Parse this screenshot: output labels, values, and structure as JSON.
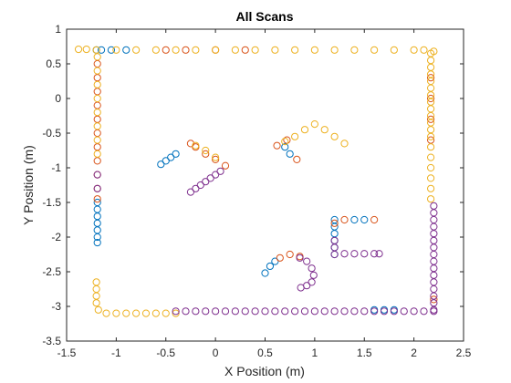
{
  "chart_data": {
    "type": "scatter",
    "title": "All Scans",
    "xlabel": "X Position (m)",
    "ylabel": "Y Position (m)",
    "xlim": [
      -1.5,
      2.5
    ],
    "ylim": [
      -3.5,
      1
    ],
    "xticks": [
      "-1.5",
      "-1",
      "-0.5",
      "0",
      "0.5",
      "1",
      "1.5",
      "2",
      "2.5"
    ],
    "yticks": [
      "1",
      "0.5",
      "0",
      "-0.5",
      "-1",
      "-1.5",
      "-2",
      "-2.5",
      "-3",
      "-3.5"
    ],
    "xtick_values": [
      -1.5,
      -1,
      -0.5,
      0,
      0.5,
      1,
      1.5,
      2,
      2.5
    ],
    "ytick_values": [
      1,
      0.5,
      0,
      -0.5,
      -1,
      -1.5,
      -2,
      -2.5,
      -3,
      -3.5
    ],
    "grid": false,
    "marker": "open-circle",
    "series": [
      {
        "color": "#0072BD",
        "points": [
          [
            -1.2,
            0.7
          ],
          [
            -1.15,
            0.7
          ],
          [
            -1.05,
            0.7
          ],
          [
            -0.9,
            0.7
          ],
          [
            -1.19,
            -1.5
          ],
          [
            -1.19,
            -1.6
          ],
          [
            -1.19,
            -1.7
          ],
          [
            -1.19,
            -1.8
          ],
          [
            -1.19,
            -1.9
          ],
          [
            -1.19,
            -2.0
          ],
          [
            -1.19,
            -2.08
          ],
          [
            -0.55,
            -0.95
          ],
          [
            -0.5,
            -0.9
          ],
          [
            -0.45,
            -0.85
          ],
          [
            -0.4,
            -0.8
          ],
          [
            0.75,
            -0.8
          ],
          [
            0.7,
            -0.7
          ],
          [
            1.2,
            -1.75
          ],
          [
            1.2,
            -1.85
          ],
          [
            1.2,
            -1.95
          ],
          [
            1.2,
            -2.05
          ],
          [
            1.2,
            -2.15
          ],
          [
            1.2,
            -2.25
          ],
          [
            1.4,
            -1.75
          ],
          [
            1.5,
            -1.75
          ],
          [
            0.5,
            -2.52
          ],
          [
            0.55,
            -2.42
          ],
          [
            0.6,
            -2.35
          ],
          [
            1.6,
            -3.05
          ],
          [
            1.7,
            -3.05
          ],
          [
            1.8,
            -3.05
          ]
        ]
      },
      {
        "color": "#D95319",
        "points": [
          [
            -1.19,
            0.5
          ],
          [
            -1.19,
            0.3
          ],
          [
            -1.19,
            0.1
          ],
          [
            -1.19,
            -0.1
          ],
          [
            -1.19,
            -0.3
          ],
          [
            -1.19,
            -0.5
          ],
          [
            -1.19,
            -0.7
          ],
          [
            -1.19,
            -0.9
          ],
          [
            -1.19,
            -1.1
          ],
          [
            -1.19,
            -1.3
          ],
          [
            -1.19,
            -1.45
          ],
          [
            -0.5,
            0.7
          ],
          [
            -0.3,
            0.7
          ],
          [
            0.0,
            0.7
          ],
          [
            0.3,
            0.7
          ],
          [
            -0.25,
            -0.65
          ],
          [
            -0.2,
            -0.7
          ],
          [
            -0.1,
            -0.8
          ],
          [
            0.0,
            -0.88
          ],
          [
            0.1,
            -0.97
          ],
          [
            0.62,
            -0.68
          ],
          [
            0.72,
            -0.6
          ],
          [
            0.82,
            -0.88
          ],
          [
            1.2,
            -1.8
          ],
          [
            1.3,
            -1.75
          ],
          [
            1.6,
            -1.75
          ],
          [
            0.65,
            -2.3
          ],
          [
            0.75,
            -2.25
          ],
          [
            0.85,
            -2.28
          ],
          [
            2.17,
            0.3
          ],
          [
            2.17,
            0.0
          ],
          [
            2.17,
            -0.3
          ],
          [
            2.17,
            -0.6
          ],
          [
            2.2,
            -2.9
          ]
        ]
      },
      {
        "color": "#EDB120",
        "points": [
          [
            -1.38,
            0.71
          ],
          [
            -1.3,
            0.71
          ],
          [
            -1.2,
            0.7
          ],
          [
            -1.0,
            0.7
          ],
          [
            -0.8,
            0.7
          ],
          [
            -0.6,
            0.7
          ],
          [
            -0.4,
            0.7
          ],
          [
            -0.2,
            0.7
          ],
          [
            0.0,
            0.7
          ],
          [
            0.2,
            0.7
          ],
          [
            0.4,
            0.7
          ],
          [
            0.6,
            0.7
          ],
          [
            0.8,
            0.7
          ],
          [
            1.0,
            0.7
          ],
          [
            1.2,
            0.7
          ],
          [
            1.4,
            0.7
          ],
          [
            1.6,
            0.7
          ],
          [
            1.8,
            0.7
          ],
          [
            2.0,
            0.7
          ],
          [
            2.1,
            0.7
          ],
          [
            2.2,
            0.68
          ],
          [
            -1.19,
            0.6
          ],
          [
            -1.19,
            0.4
          ],
          [
            -1.19,
            0.2
          ],
          [
            -1.19,
            0.0
          ],
          [
            -1.19,
            -0.2
          ],
          [
            -1.19,
            -0.4
          ],
          [
            -1.19,
            -0.6
          ],
          [
            -1.19,
            -0.8
          ],
          [
            -1.2,
            -2.65
          ],
          [
            -1.2,
            -2.75
          ],
          [
            -1.2,
            -2.85
          ],
          [
            -1.2,
            -2.95
          ],
          [
            -1.18,
            -3.05
          ],
          [
            -1.1,
            -3.1
          ],
          [
            -1.0,
            -3.1
          ],
          [
            -0.9,
            -3.1
          ],
          [
            -0.8,
            -3.1
          ],
          [
            -0.7,
            -3.1
          ],
          [
            -0.6,
            -3.1
          ],
          [
            -0.5,
            -3.1
          ],
          [
            -0.4,
            -3.1
          ],
          [
            -0.2,
            -0.68
          ],
          [
            -0.1,
            -0.75
          ],
          [
            0.0,
            -0.85
          ],
          [
            0.7,
            -0.62
          ],
          [
            0.8,
            -0.55
          ],
          [
            0.9,
            -0.45
          ],
          [
            1.0,
            -0.37
          ],
          [
            1.1,
            -0.45
          ],
          [
            1.2,
            -0.55
          ],
          [
            1.3,
            -0.65
          ],
          [
            2.17,
            0.65
          ],
          [
            2.17,
            0.55
          ],
          [
            2.17,
            0.45
          ],
          [
            2.17,
            0.35
          ],
          [
            2.17,
            0.25
          ],
          [
            2.17,
            0.15
          ],
          [
            2.17,
            0.05
          ],
          [
            2.17,
            -0.05
          ],
          [
            2.17,
            -0.15
          ],
          [
            2.17,
            -0.25
          ],
          [
            2.17,
            -0.35
          ],
          [
            2.17,
            -0.45
          ],
          [
            2.17,
            -0.55
          ],
          [
            2.17,
            -0.7
          ],
          [
            2.17,
            -0.85
          ],
          [
            2.17,
            -1.0
          ],
          [
            2.17,
            -1.15
          ],
          [
            2.17,
            -1.3
          ],
          [
            2.17,
            -1.45
          ]
        ]
      },
      {
        "color": "#7E2F8E",
        "points": [
          [
            -0.25,
            -1.35
          ],
          [
            -0.2,
            -1.3
          ],
          [
            -0.15,
            -1.25
          ],
          [
            -0.1,
            -1.2
          ],
          [
            -0.05,
            -1.15
          ],
          [
            0.0,
            -1.1
          ],
          [
            0.05,
            -1.05
          ],
          [
            -1.19,
            -1.1
          ],
          [
            -1.19,
            -1.3
          ],
          [
            -0.4,
            -3.07
          ],
          [
            -0.3,
            -3.07
          ],
          [
            -0.2,
            -3.07
          ],
          [
            -0.1,
            -3.07
          ],
          [
            0.0,
            -3.07
          ],
          [
            0.1,
            -3.07
          ],
          [
            0.2,
            -3.07
          ],
          [
            0.3,
            -3.07
          ],
          [
            0.4,
            -3.07
          ],
          [
            0.5,
            -3.07
          ],
          [
            0.6,
            -3.07
          ],
          [
            0.7,
            -3.07
          ],
          [
            0.8,
            -3.07
          ],
          [
            0.9,
            -3.07
          ],
          [
            1.0,
            -3.07
          ],
          [
            1.1,
            -3.07
          ],
          [
            1.2,
            -3.07
          ],
          [
            1.3,
            -3.07
          ],
          [
            1.4,
            -3.07
          ],
          [
            1.5,
            -3.07
          ],
          [
            1.6,
            -3.07
          ],
          [
            1.7,
            -3.07
          ],
          [
            1.8,
            -3.07
          ],
          [
            1.9,
            -3.07
          ],
          [
            2.0,
            -3.07
          ],
          [
            2.1,
            -3.07
          ],
          [
            2.2,
            -3.07
          ],
          [
            2.2,
            -1.55
          ],
          [
            2.2,
            -1.65
          ],
          [
            2.2,
            -1.75
          ],
          [
            2.2,
            -1.85
          ],
          [
            2.2,
            -1.95
          ],
          [
            2.2,
            -2.05
          ],
          [
            2.2,
            -2.15
          ],
          [
            2.2,
            -2.25
          ],
          [
            2.2,
            -2.35
          ],
          [
            2.2,
            -2.45
          ],
          [
            2.2,
            -2.55
          ],
          [
            2.2,
            -2.65
          ],
          [
            2.2,
            -2.75
          ],
          [
            2.2,
            -2.85
          ],
          [
            2.2,
            -2.95
          ],
          [
            2.2,
            -3.05
          ],
          [
            1.2,
            -2.05
          ],
          [
            1.2,
            -2.15
          ],
          [
            1.2,
            -2.25
          ],
          [
            1.3,
            -2.24
          ],
          [
            1.4,
            -2.24
          ],
          [
            1.5,
            -2.24
          ],
          [
            1.6,
            -2.24
          ],
          [
            1.65,
            -2.24
          ],
          [
            0.85,
            -2.3
          ],
          [
            0.92,
            -2.35
          ],
          [
            0.97,
            -2.45
          ],
          [
            0.99,
            -2.55
          ],
          [
            0.97,
            -2.65
          ],
          [
            0.92,
            -2.7
          ],
          [
            0.86,
            -2.73
          ]
        ]
      }
    ]
  }
}
